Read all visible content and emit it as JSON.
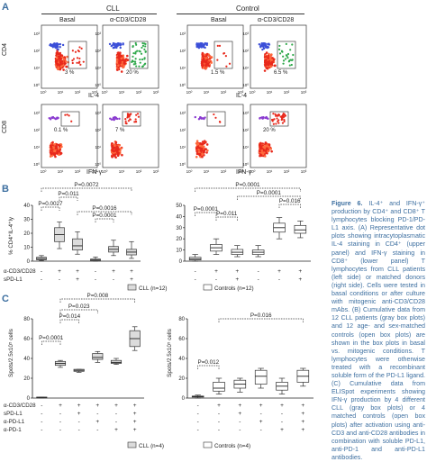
{
  "panels": [
    "A",
    "B",
    "C"
  ],
  "panel_a": {
    "groups": [
      "CLL",
      "Control"
    ],
    "conditions": [
      "Basal",
      "α-CD3/CD28",
      "Basal",
      "α-CD3/CD28"
    ],
    "row_labels": [
      "CD4",
      "CD8"
    ],
    "x_label_top": "IL-4",
    "x_label_bottom": "IFN-γ",
    "ticks": [
      "10⁰",
      "10¹",
      "10²",
      "10³"
    ],
    "top_percents": [
      "3 %",
      "20 %",
      "1.5 %",
      "6.5 %"
    ],
    "bottom_percents": [
      "0.1 %",
      "7 %",
      "",
      "20 %"
    ]
  },
  "panel_b": {
    "ylabel": "% CD4⁺IL-4⁺ly",
    "yticks_left": [
      "0",
      "10",
      "20",
      "30",
      "40"
    ],
    "yticks_right": [
      "0",
      "10",
      "20",
      "30",
      "40",
      "50"
    ],
    "pvals_left": [
      "P=0.0072",
      "P=0.011",
      "P=0.0027",
      "P=0.0001",
      "P=0.0016"
    ],
    "pvals_right": [
      "P=0.0001",
      "P=0.0001",
      "P=0.0001",
      "P=0.011",
      "P=0.016"
    ],
    "row_labels": [
      "α-CD3/CD28",
      "sPD-L1"
    ],
    "row_values_left": [
      [
        "-",
        "+",
        "+",
        "-",
        "+",
        "+"
      ],
      [
        "-",
        "-",
        "+",
        "-",
        "-",
        "+"
      ]
    ],
    "row_values_right": [
      [
        "-",
        "+",
        "+",
        "-",
        "+",
        "+"
      ],
      [
        "-",
        "-",
        "+",
        "-",
        "-",
        "+"
      ]
    ],
    "legend_cll": "CLL (n=12)",
    "legend_controls": "Controls (n=12)"
  },
  "panel_c": {
    "ylabel": "Spots/2.5x10⁵ cells",
    "yticks": [
      "0",
      "20",
      "40",
      "60",
      "80"
    ],
    "pvals_left": [
      "P=0.008",
      "P=0.023",
      "P=0.014",
      "P=0.0001"
    ],
    "pvals_right": [
      "P=0.016",
      "P=0.012"
    ],
    "row_labels": [
      "α-CD3/CD28",
      "sPD-L1",
      "α-PD-L1",
      "α-PD-1"
    ],
    "row_values": [
      [
        "-",
        "+",
        "+",
        "+",
        "+",
        "+"
      ],
      [
        "-",
        "-",
        "+",
        "-",
        "-",
        "+"
      ],
      [
        "-",
        "-",
        "-",
        "+",
        "-",
        "+"
      ],
      [
        "-",
        "-",
        "-",
        "-",
        "+",
        "+"
      ]
    ],
    "legend_cll": "CLL (n=4)",
    "legend_controls": "Controls (n=4)"
  },
  "caption": {
    "title": "Figure 6.",
    "text": "IL-4⁺ and IFN-γ⁺ production by CD4⁺ and CD8⁺ T lymphocytes blocking PD-1/PD-L1 axis. (A) Representative dot plots showing intracytoplasmatic IL-4 staining in CD4⁺ (upper panel) and IFN-γ staining in CD8⁺ (lower panel) T lymphocytes from CLL patients (left side) or matched donors (right side). Cells were tested in basal conditions or after culture with mitogenic anti-CD3/CD28 mAbs. (B) Cumulative data from 12 CLL patients (gray box plots) and 12 age- and sex-matched controls (open box plots) are shown in the box plots in basal vs. mitogenic conditions. T lymphocytes were otherwise treated with a recombinant soluble form of the PD-L1 ligand. (C) Cumulative data from ELISpot experiments showing IFN-γ production by 4 different CLL (gray box plots) or 4 matched controls (open box plots) after activation using anti-CD3 and anti-CD28 antibodies in combination with soluble PD-L1, anti-PD-1 and anti-PD-L1 antibodies."
  },
  "chart_data": [
    {
      "type": "box",
      "panel": "B-left",
      "series": [
        {
          "name": "CLL (n=12)",
          "boxes": [
            {
              "min": 0.5,
              "q1": 1,
              "med": 1.8,
              "q3": 2.8,
              "max": 4
            },
            {
              "min": 9,
              "q1": 14,
              "med": 19,
              "q3": 24,
              "max": 28
            },
            {
              "min": 5,
              "q1": 8,
              "med": 11,
              "q3": 16,
              "max": 21
            },
            {
              "min": 0,
              "q1": 0.3,
              "med": 0.8,
              "q3": 1.5,
              "max": 3
            },
            {
              "min": 4,
              "q1": 6.5,
              "med": 8.5,
              "q3": 10.5,
              "max": 15
            },
            {
              "min": 2,
              "q1": 4.5,
              "med": 6.5,
              "q3": 8.5,
              "max": 14
            }
          ]
        }
      ],
      "ylim": [
        0,
        40
      ]
    },
    {
      "type": "box",
      "panel": "B-right",
      "series": [
        {
          "name": "Controls (n=12)",
          "boxes": [
            {
              "min": 0,
              "q1": 1,
              "med": 2,
              "q3": 3.5,
              "max": 6
            },
            {
              "min": 6,
              "q1": 9,
              "med": 12,
              "q3": 15,
              "max": 20
            },
            {
              "min": 4,
              "q1": 6,
              "med": 8,
              "q3": 10.5,
              "max": 14
            },
            {
              "min": 4,
              "q1": 6,
              "med": 8,
              "q3": 10,
              "max": 14
            },
            {
              "min": 20,
              "q1": 26,
              "med": 30,
              "q3": 34,
              "max": 39
            },
            {
              "min": 21,
              "q1": 25,
              "med": 28,
              "q3": 32,
              "max": 36
            }
          ]
        }
      ],
      "ylim": [
        0,
        50
      ]
    },
    {
      "type": "box",
      "panel": "C-left",
      "series": [
        {
          "name": "CLL (n=4)",
          "boxes": [
            {
              "min": 0,
              "q1": 0,
              "med": 0.5,
              "q3": 1,
              "max": 1
            },
            {
              "min": 31,
              "q1": 33,
              "med": 35,
              "q3": 37,
              "max": 38
            },
            {
              "min": 26,
              "q1": 27,
              "med": 28,
              "q3": 29,
              "max": 29
            },
            {
              "min": 36,
              "q1": 39,
              "med": 41,
              "q3": 45,
              "max": 47
            },
            {
              "min": 34,
              "q1": 35,
              "med": 36,
              "q3": 38,
              "max": 40
            },
            {
              "min": 48,
              "q1": 52,
              "med": 60,
              "q3": 68,
              "max": 72
            }
          ]
        }
      ],
      "ylim": [
        0,
        80
      ]
    },
    {
      "type": "box",
      "panel": "C-right",
      "series": [
        {
          "name": "Controls (n=4)",
          "boxes": [
            {
              "min": 0,
              "q1": 1,
              "med": 1.5,
              "q3": 2,
              "max": 3
            },
            {
              "min": 4,
              "q1": 7,
              "med": 10,
              "q3": 16,
              "max": 20
            },
            {
              "min": 6,
              "q1": 10,
              "med": 14,
              "q3": 18,
              "max": 20
            },
            {
              "min": 10,
              "q1": 14,
              "med": 22,
              "q3": 28,
              "max": 30
            },
            {
              "min": 4,
              "q1": 8,
              "med": 12,
              "q3": 16,
              "max": 20
            },
            {
              "min": 12,
              "q1": 16,
              "med": 22,
              "q3": 28,
              "max": 30
            }
          ]
        }
      ],
      "ylim": [
        0,
        80
      ]
    }
  ]
}
